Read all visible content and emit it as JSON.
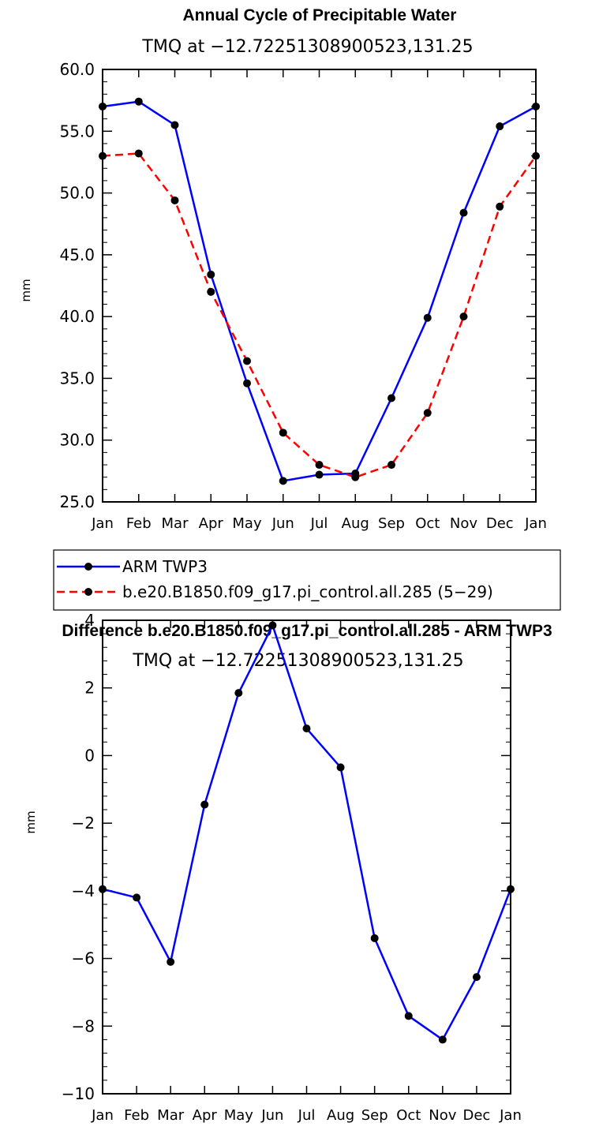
{
  "chart_data": [
    {
      "type": "line",
      "title": "Annual Cycle of Precipitable Water",
      "subtitle": "TMQ at −12.72251308900523,131.25",
      "xlabel": "",
      "ylabel": "mm",
      "categories": [
        "Jan",
        "Feb",
        "Mar",
        "Apr",
        "May",
        "Jun",
        "Jul",
        "Aug",
        "Sep",
        "Oct",
        "Nov",
        "Dec",
        "Jan"
      ],
      "ylim": [
        25.0,
        60.0
      ],
      "yticks": [
        "25.0",
        "30.0",
        "35.0",
        "40.0",
        "45.0",
        "50.0",
        "55.0",
        "60.0"
      ],
      "series": [
        {
          "name": "ARM TWP3",
          "color": "#0000ff",
          "dash": "solid",
          "values": [
            57.0,
            57.4,
            55.5,
            43.4,
            34.6,
            26.7,
            27.2,
            27.3,
            33.4,
            39.9,
            48.4,
            55.4,
            57.0
          ]
        },
        {
          "name": "b.e20.B1850.f09_g17.pi_control.all.285 (5−29)",
          "color": "#ff0000",
          "dash": "dashed",
          "values": [
            53.0,
            53.2,
            49.4,
            42.0,
            36.4,
            30.6,
            28.0,
            27.0,
            28.0,
            32.2,
            40.0,
            48.9,
            53.0
          ]
        }
      ],
      "legend_position": "bottom"
    },
    {
      "type": "line",
      "title": "Difference b.e20.B1850.f09_g17.pi_control.all.285 - ARM TWP3",
      "subtitle": "TMQ at −12.72251308900523,131.25",
      "xlabel": "",
      "ylabel": "mm",
      "categories": [
        "Jan",
        "Feb",
        "Mar",
        "Apr",
        "May",
        "Jun",
        "Jul",
        "Aug",
        "Sep",
        "Oct",
        "Nov",
        "Dec",
        "Jan"
      ],
      "ylim": [
        -10,
        4
      ],
      "yticks": [
        "−10",
        "−8",
        "−6",
        "−4",
        "−2",
        "0",
        "2",
        "4"
      ],
      "series": [
        {
          "color": "#0000ff",
          "dash": "solid",
          "values": [
            -3.95,
            -4.2,
            -6.1,
            -1.45,
            1.85,
            3.85,
            0.8,
            -0.35,
            -5.4,
            -7.7,
            -8.4,
            -6.55,
            -3.95
          ]
        }
      ]
    }
  ]
}
